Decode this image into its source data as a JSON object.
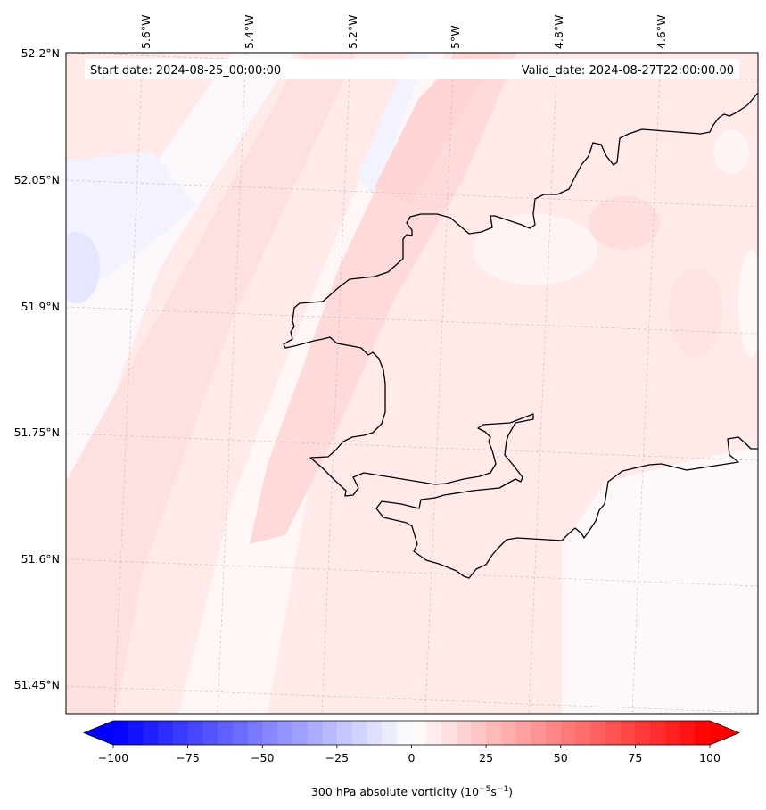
{
  "map": {
    "start_date": "Start date: 2024-08-25_00:00:00",
    "valid_date": "Valid_date: 2024-08-27T22:00:00.00",
    "lon_labels": [
      "5.6°W",
      "5.4°W",
      "5.2°W",
      "5°W",
      "4.8°W",
      "4.6°W"
    ],
    "lat_labels": [
      "52.2°N",
      "52.05°N",
      "51.9°N",
      "51.75°N",
      "51.6°N",
      "51.45°N"
    ]
  },
  "colorbar": {
    "ticks": [
      -100,
      -75,
      -50,
      -25,
      0,
      25,
      50,
      75,
      100
    ],
    "tick_labels": [
      "−100",
      "−75",
      "−50",
      "−25",
      "0",
      "25",
      "50",
      "75",
      "100"
    ],
    "label": "300 hPa absolute vorticity (10",
    "label_exp1": "−5",
    "label_mid": "s",
    "label_exp2": "−1",
    "label_end": ")",
    "min_color": "#0000ff",
    "mid_color": "#ffffff",
    "max_color": "#ff0000"
  },
  "colors": {
    "coastline": "#000000",
    "gridline": "#bbbbbb"
  }
}
